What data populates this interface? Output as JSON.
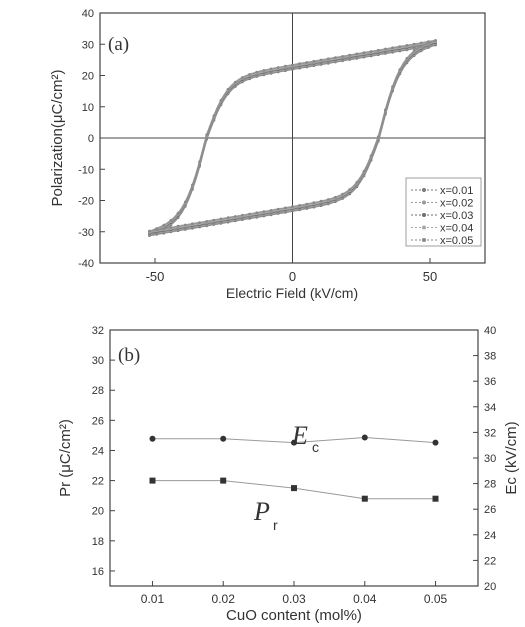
{
  "chart_data": [
    {
      "type": "line",
      "panel_label": "(a)",
      "xlabel": "Electric Field (kV/cm)",
      "ylabel": "Polarization(μC/cm²)",
      "xlim": [
        -70,
        70
      ],
      "ylim": [
        -40,
        40
      ],
      "xticks": [
        "-50",
        "0",
        "50"
      ],
      "yticks": [
        "-40",
        "-30",
        "-20",
        "-10",
        "0",
        "10",
        "20",
        "30",
        "40"
      ],
      "grid": false,
      "zero_lines": true,
      "legend": "bottom-right",
      "loop": {
        "coercive_field": 31.5,
        "remanent_polarization": 22,
        "max_field": 52,
        "max_polarization": 30.5
      },
      "series": [
        {
          "name": "x=0.01",
          "color": "#7a7a7a"
        },
        {
          "name": "x=0.02",
          "color": "#9a9a9a"
        },
        {
          "name": "x=0.03",
          "color": "#6e6e6e"
        },
        {
          "name": "x=0.04",
          "color": "#a8a8a8"
        },
        {
          "name": "x=0.05",
          "color": "#8a8a8a"
        }
      ]
    },
    {
      "type": "line",
      "panel_label": "(b)",
      "xlabel": "CuO content (mol%)",
      "ylabel_left": "Pr (μC/cm²)",
      "ylabel_right": "Ec (kV/cm)",
      "xlim": [
        0.004,
        0.056
      ],
      "ylim_left": [
        15,
        32
      ],
      "ylim_right": [
        20,
        40
      ],
      "xticks": [
        "0.01",
        "0.02",
        "0.03",
        "0.04",
        "0.05"
      ],
      "yticks_left": [
        "16",
        "18",
        "20",
        "22",
        "24",
        "26",
        "28",
        "30",
        "32"
      ],
      "yticks_right": [
        "20",
        "22",
        "24",
        "26",
        "28",
        "30",
        "32",
        "34",
        "36",
        "38",
        "40"
      ],
      "grid": false,
      "x": [
        0.01,
        0.02,
        0.03,
        0.04,
        0.05
      ],
      "series": [
        {
          "name": "Ec",
          "axis": "right",
          "values": [
            31.5,
            31.5,
            31.2,
            31.6,
            31.2
          ],
          "marker": "circle",
          "label_main": "E",
          "label_sub": "c"
        },
        {
          "name": "Pr",
          "axis": "left",
          "values": [
            22.0,
            22.0,
            21.5,
            20.8,
            20.8
          ],
          "marker": "square",
          "label_main": "P",
          "label_sub": "r"
        }
      ]
    }
  ]
}
